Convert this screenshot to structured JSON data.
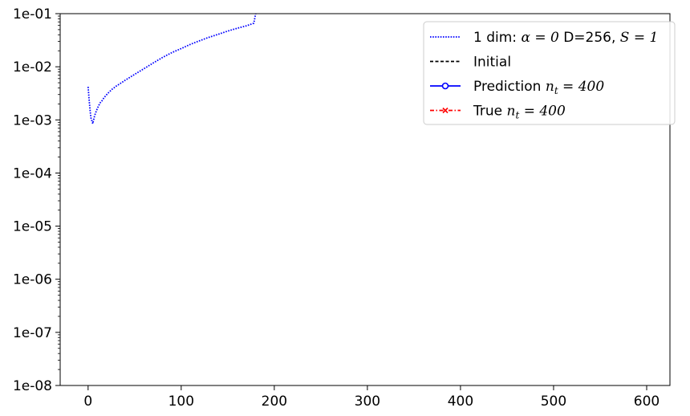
{
  "chart_data": {
    "type": "line",
    "title": "",
    "xlabel": "",
    "ylabel": "",
    "x_scale": "linear",
    "y_scale": "log",
    "xlim": [
      -30,
      625
    ],
    "ylim": [
      1e-08,
      0.1
    ],
    "grid": false,
    "x_ticks": [
      {
        "value": 0,
        "label": "0"
      },
      {
        "value": 100,
        "label": "100"
      },
      {
        "value": 200,
        "label": "200"
      },
      {
        "value": 300,
        "label": "300"
      },
      {
        "value": 400,
        "label": "400"
      },
      {
        "value": 500,
        "label": "500"
      },
      {
        "value": 600,
        "label": "600"
      }
    ],
    "y_ticks": [
      {
        "value": 1e-08,
        "label": "1e-08"
      },
      {
        "value": 1e-07,
        "label": "1e-07"
      },
      {
        "value": 1e-06,
        "label": "1e-06"
      },
      {
        "value": 1e-05,
        "label": "1e-05"
      },
      {
        "value": 0.0001,
        "label": "1e-04"
      },
      {
        "value": 0.001,
        "label": "1e-03"
      },
      {
        "value": 0.01,
        "label": "1e-02"
      },
      {
        "value": 0.1,
        "label": "1e-01"
      }
    ],
    "legend_position": "top-right",
    "series": [
      {
        "name": "1 dim: α = 0 D=256, S = 1",
        "legend_parts": [
          {
            "text": "1 dim: ",
            "math": false
          },
          {
            "text": "α = 0",
            "math": true
          },
          {
            "text": " D=256, ",
            "math": false
          },
          {
            "text": "S = 1",
            "math": true
          }
        ],
        "color": "#0000ff",
        "style": "dotted",
        "marker": "none",
        "x": [
          0,
          1,
          2,
          3,
          5,
          7,
          9,
          11,
          13,
          15,
          17,
          20,
          23,
          26,
          30,
          35,
          40,
          50,
          60,
          70,
          80,
          90,
          100,
          110,
          120,
          130,
          140,
          150,
          160,
          170,
          178,
          180
        ],
        "y": [
          0.0042,
          0.0025,
          0.0016,
          0.0011,
          0.00085,
          0.0012,
          0.0015,
          0.0018,
          0.0021,
          0.0023,
          0.0026,
          0.003,
          0.0034,
          0.0038,
          0.0043,
          0.0049,
          0.0056,
          0.0072,
          0.0092,
          0.0118,
          0.015,
          0.0185,
          0.022,
          0.0265,
          0.031,
          0.036,
          0.041,
          0.047,
          0.053,
          0.059,
          0.066,
          0.1
        ]
      },
      {
        "name": "Initial",
        "legend_parts": [
          {
            "text": "Initial",
            "math": false
          }
        ],
        "color": "#000000",
        "style": "dashed",
        "marker": "none",
        "x": [],
        "y": []
      },
      {
        "name": "Prediction n_t = 400",
        "legend_parts": [
          {
            "text": "Prediction ",
            "math": false
          },
          {
            "text": "n",
            "math": true
          },
          {
            "text": "t",
            "math": true,
            "sub": true
          },
          {
            "text": " = 400",
            "math": true
          }
        ],
        "color": "#0000ff",
        "style": "solid",
        "marker": "circle",
        "x": [],
        "y": []
      },
      {
        "name": "True n_t = 400",
        "legend_parts": [
          {
            "text": "True ",
            "math": false
          },
          {
            "text": "n",
            "math": true
          },
          {
            "text": "t",
            "math": true,
            "sub": true
          },
          {
            "text": " = 400",
            "math": true
          }
        ],
        "color": "#ff0000",
        "style": "dashdot",
        "marker": "x",
        "x": [],
        "y": []
      }
    ]
  }
}
